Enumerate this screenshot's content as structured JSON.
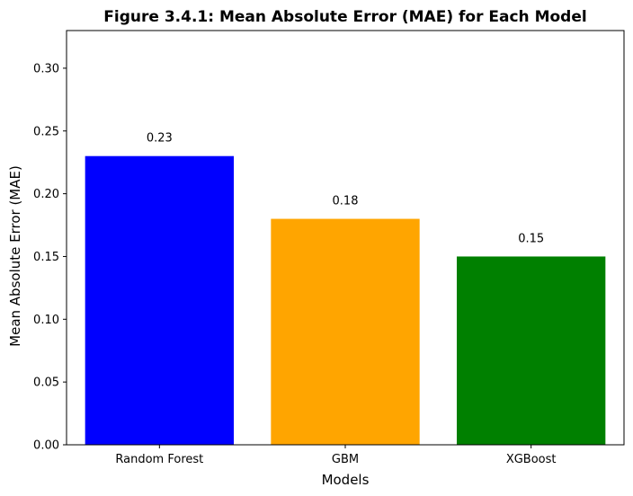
{
  "chart_data": {
    "type": "bar",
    "title": "Figure 3.4.1: Mean Absolute Error (MAE) for Each Model",
    "xlabel": "Models",
    "ylabel": "Mean Absolute Error (MAE)",
    "categories": [
      "Random Forest",
      "GBM",
      "XGBoost"
    ],
    "values": [
      0.23,
      0.18,
      0.15
    ],
    "data_labels": [
      "0.23",
      "0.18",
      "0.15"
    ],
    "colors": [
      "#0000ff",
      "#ffa500",
      "#008000"
    ],
    "ylim": [
      0,
      0.33
    ],
    "yticks": [
      0.0,
      0.05,
      0.1,
      0.15,
      0.2,
      0.25,
      0.3
    ],
    "ytick_labels": [
      "0.00",
      "0.05",
      "0.10",
      "0.15",
      "0.20",
      "0.25",
      "0.30"
    ],
    "grid": false,
    "legend": "none"
  }
}
